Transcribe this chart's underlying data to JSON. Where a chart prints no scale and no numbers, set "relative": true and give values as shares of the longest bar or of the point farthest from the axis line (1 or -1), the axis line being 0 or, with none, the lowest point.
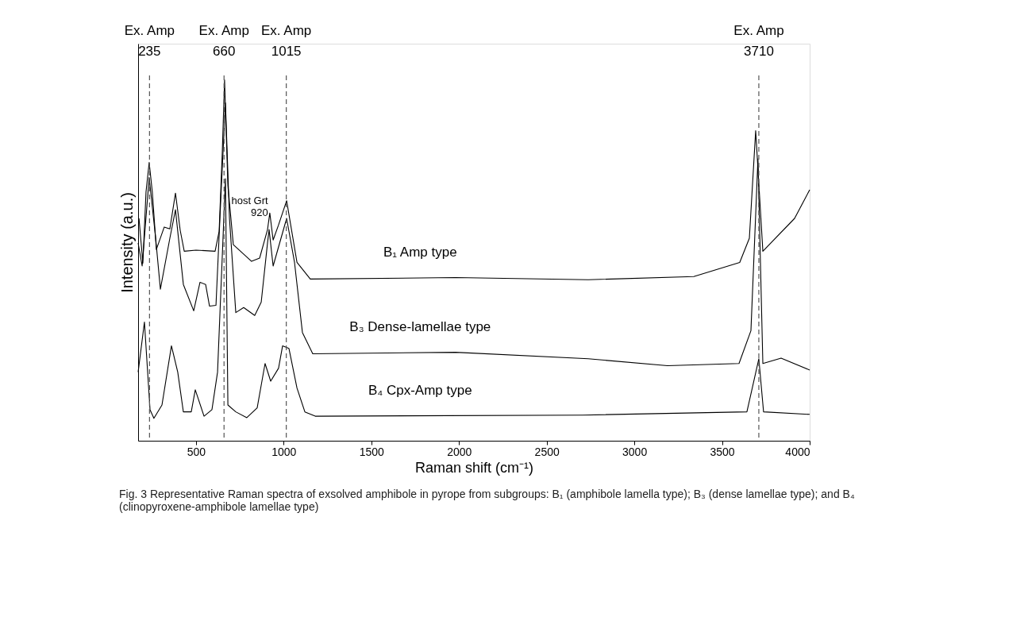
{
  "chart_data": {
    "type": "line",
    "relative": true,
    "xlabel": "Raman shift (cm⁻¹)",
    "ylabel": "Intensity (a.u.)",
    "xlim": [
      170,
      4000
    ],
    "xticks": [
      500,
      1000,
      1500,
      2000,
      2500,
      3000,
      3500,
      4000
    ],
    "tick_labels": "x",
    "grid": false,
    "legend": false,
    "series": [
      {
        "name": "B₁ Amp type",
        "color": "#000000",
        "x": [
          175,
          197,
          215,
          233,
          251,
          274,
          319,
          351,
          383,
          410,
          433,
          500,
          609,
          632,
          650,
          663,
          682,
          713,
          817,
          863,
          908,
          921,
          940,
          971,
          1017,
          1076,
          1152,
          1980,
          2737,
          3339,
          3601,
          3656,
          3692,
          3733,
          3914,
          4000
        ],
        "values": [
          0.616,
          0.492,
          0.689,
          0.771,
          0.689,
          0.53,
          0.592,
          0.587,
          0.686,
          0.583,
          0.525,
          0.528,
          0.525,
          0.58,
          0.799,
          1.0,
          0.707,
          0.543,
          0.497,
          0.506,
          0.585,
          0.631,
          0.556,
          0.598,
          0.665,
          0.494,
          0.448,
          0.452,
          0.446,
          0.455,
          0.494,
          0.561,
          0.859,
          0.525,
          0.616,
          0.695
        ]
      },
      {
        "name": "B₃ Dense-lamellae type",
        "color": "#000000",
        "x": [
          170,
          193,
          233,
          270,
          297,
          351,
          383,
          428,
          487,
          523,
          555,
          577,
          614,
          645,
          668,
          691,
          727,
          772,
          835,
          872,
          908,
          917,
          940,
          1017,
          1062,
          1107,
          1166,
          1980,
          2737,
          3189,
          3597,
          3665,
          3705,
          3733,
          3837,
          4000
        ],
        "values": [
          0.548,
          0.484,
          0.729,
          0.561,
          0.42,
          0.561,
          0.64,
          0.433,
          0.36,
          0.439,
          0.433,
          0.373,
          0.375,
          0.707,
          0.936,
          0.616,
          0.355,
          0.369,
          0.347,
          0.384,
          0.548,
          0.585,
          0.484,
          0.616,
          0.494,
          0.3,
          0.241,
          0.245,
          0.227,
          0.208,
          0.214,
          0.305,
          0.781,
          0.214,
          0.229,
          0.196
        ]
      },
      {
        "name": "B₄ Cpx-Amp type",
        "color": "#000000",
        "x": [
          170,
          206,
          238,
          260,
          306,
          360,
          396,
          428,
          473,
          496,
          546,
          591,
          623,
          668,
          682,
          727,
          790,
          849,
          894,
          926,
          971,
          994,
          1030,
          1076,
          1121,
          1180,
          2705,
          3642,
          3710,
          3737,
          4000
        ],
        "values": [
          0.19,
          0.329,
          0.086,
          0.062,
          0.099,
          0.263,
          0.19,
          0.08,
          0.08,
          0.141,
          0.068,
          0.086,
          0.19,
          0.726,
          0.099,
          0.08,
          0.064,
          0.091,
          0.214,
          0.165,
          0.201,
          0.263,
          0.256,
          0.146,
          0.08,
          0.068,
          0.071,
          0.08,
          0.227,
          0.08,
          0.073
        ]
      }
    ],
    "ref_lines": [
      {
        "axis": "x",
        "value": 235,
        "label": "Ex. Amp 235",
        "color": "#555555",
        "line_style": "dashed"
      },
      {
        "axis": "x",
        "value": 660,
        "label": "Ex. Amp 660",
        "color": "#555555",
        "line_style": "dashed"
      },
      {
        "axis": "x",
        "value": 1015,
        "label": "Ex. Amp 1015",
        "color": "#555555",
        "line_style": "dashed"
      },
      {
        "axis": "x",
        "value": 3710,
        "label": "Ex. Amp 3710",
        "color": "#555555",
        "line_style": "dashed"
      }
    ],
    "annotations": [
      {
        "text": "host Grt 920",
        "x": 920,
        "y": 0.64
      },
      "Fig. 3 Representative Raman spectra of exsolved amphibole in pyrope from subgroups: B₁ (amphibole lamella type); B₃ (dense lamellae type); and B₄ (clinopyroxene-amphibole lamellae type)"
    ]
  }
}
